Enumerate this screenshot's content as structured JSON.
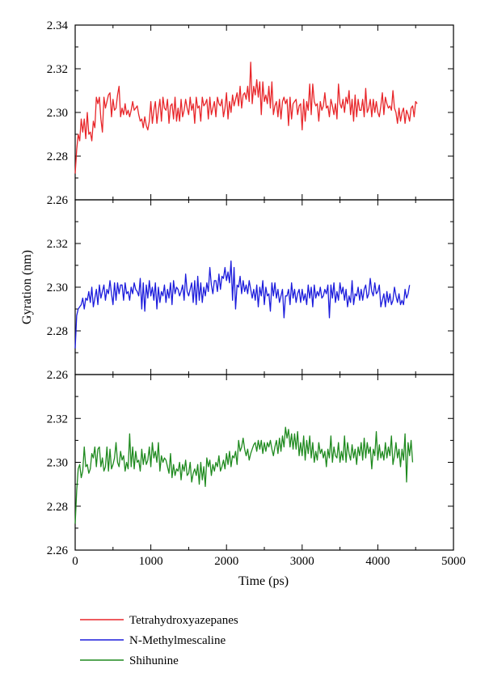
{
  "chart_data": {
    "type": "line",
    "ylabel": "Gyration (nm)",
    "xlabel": "Time (ps)",
    "xlim": [
      0,
      5000
    ],
    "ylim": [
      2.26,
      2.34
    ],
    "xticks": [
      "0",
      "1000",
      "2000",
      "3000",
      "4000",
      "5000"
    ],
    "yticks_top": [
      "2.34",
      "2.32",
      "2.30",
      "2.28",
      "2.26"
    ],
    "yticks_lower": [
      "2.32",
      "2.30",
      "2.28",
      "2.26"
    ],
    "x_step": 20,
    "panels": [
      {
        "name": "Tetrahydroxyazepanes",
        "color": "#e8262a",
        "values": [
          2.272,
          2.283,
          2.29,
          2.287,
          2.297,
          2.291,
          2.297,
          2.288,
          2.3,
          2.29,
          2.291,
          2.287,
          2.296,
          2.293,
          2.307,
          2.304,
          2.307,
          2.297,
          2.291,
          2.307,
          2.302,
          2.305,
          2.308,
          2.309,
          2.298,
          2.306,
          2.301,
          2.302,
          2.308,
          2.312,
          2.298,
          2.302,
          2.299,
          2.304,
          2.299,
          2.301,
          2.298,
          2.301,
          2.305,
          2.301,
          2.302,
          2.303,
          2.299,
          2.296,
          2.297,
          2.293,
          2.298,
          2.294,
          2.292,
          2.296,
          2.305,
          2.295,
          2.301,
          2.305,
          2.295,
          2.301,
          2.306,
          2.296,
          2.307,
          2.302,
          2.301,
          2.306,
          2.295,
          2.303,
          2.304,
          2.297,
          2.307,
          2.296,
          2.302,
          2.296,
          2.306,
          2.298,
          2.301,
          2.306,
          2.302,
          2.299,
          2.307,
          2.301,
          2.304,
          2.295,
          2.307,
          2.302,
          2.303,
          2.296,
          2.307,
          2.303,
          2.304,
          2.306,
          2.297,
          2.307,
          2.299,
          2.302,
          2.305,
          2.298,
          2.307,
          2.304,
          2.303,
          2.306,
          2.298,
          2.302,
          2.309,
          2.297,
          2.305,
          2.3,
          2.308,
          2.303,
          2.306,
          2.309,
          2.303,
          2.312,
          2.302,
          2.308,
          2.309,
          2.306,
          2.312,
          2.305,
          2.323,
          2.304,
          2.312,
          2.308,
          2.315,
          2.307,
          2.314,
          2.299,
          2.314,
          2.305,
          2.308,
          2.304,
          2.312,
          2.302,
          2.314,
          2.299,
          2.303,
          2.305,
          2.298,
          2.306,
          2.297,
          2.305,
          2.307,
          2.304,
          2.306,
          2.294,
          2.307,
          2.297,
          2.304,
          2.305,
          2.306,
          2.299,
          2.303,
          2.304,
          2.292,
          2.306,
          2.296,
          2.305,
          2.301,
          2.313,
          2.299,
          2.313,
          2.305,
          2.303,
          2.304,
          2.296,
          2.305,
          2.301,
          2.303,
          2.309,
          2.302,
          2.303,
          2.298,
          2.306,
          2.303,
          2.299,
          2.304,
          2.297,
          2.313,
          2.304,
          2.302,
          2.306,
          2.3,
          2.307,
          2.304,
          2.31,
          2.299,
          2.306,
          2.296,
          2.308,
          2.298,
          2.306,
          2.301,
          2.301,
          2.306,
          2.298,
          2.311,
          2.3,
          2.302,
          2.306,
          2.298,
          2.306,
          2.3,
          2.305,
          2.3,
          2.298,
          2.303,
          2.309,
          2.299,
          2.307,
          2.304,
          2.302,
          2.303,
          2.301,
          2.31,
          2.302,
          2.3,
          2.295,
          2.302,
          2.296,
          2.3,
          2.302,
          2.295,
          2.301,
          2.299,
          2.296,
          2.302,
          2.303,
          2.298,
          2.305,
          2.304
        ]
      },
      {
        "name": "N-Methylmescaline",
        "color": "#1c1cdc",
        "values": [
          2.272,
          2.287,
          2.29,
          2.291,
          2.292,
          2.295,
          2.29,
          2.295,
          2.294,
          2.298,
          2.293,
          2.3,
          2.291,
          2.295,
          2.299,
          2.292,
          2.301,
          2.295,
          2.298,
          2.301,
          2.294,
          2.299,
          2.297,
          2.303,
          2.297,
          2.292,
          2.302,
          2.294,
          2.302,
          2.297,
          2.301,
          2.301,
          2.294,
          2.302,
          2.297,
          2.298,
          2.294,
          2.3,
          2.297,
          2.302,
          2.299,
          2.298,
          2.296,
          2.304,
          2.29,
          2.302,
          2.289,
          2.301,
          2.295,
          2.303,
          2.296,
          2.3,
          2.294,
          2.302,
          2.29,
          2.3,
          2.293,
          2.298,
          2.296,
          2.301,
          2.293,
          2.299,
          2.295,
          2.302,
          2.292,
          2.303,
          2.297,
          2.3,
          2.299,
          2.296,
          2.298,
          2.301,
          2.294,
          2.306,
          2.298,
          2.296,
          2.299,
          2.302,
          2.293,
          2.303,
          2.292,
          2.305,
          2.294,
          2.302,
          2.293,
          2.3,
          2.296,
          2.302,
          2.298,
          2.309,
          2.301,
          2.297,
          2.303,
          2.303,
          2.298,
          2.306,
          2.299,
          2.305,
          2.304,
          2.309,
          2.303,
          2.307,
          2.302,
          2.312,
          2.294,
          2.309,
          2.29,
          2.301,
          2.3,
          2.305,
          2.297,
          2.303,
          2.298,
          2.301,
          2.297,
          2.303,
          2.299,
          2.295,
          2.299,
          2.294,
          2.301,
          2.291,
          2.3,
          2.296,
          2.303,
          2.292,
          2.3,
          2.296,
          2.297,
          2.289,
          2.302,
          2.296,
          2.302,
          2.295,
          2.299,
          2.293,
          2.296,
          2.299,
          2.286,
          2.296,
          2.296,
          2.299,
          2.292,
          2.302,
          2.295,
          2.299,
          2.293,
          2.297,
          2.299,
          2.293,
          2.299,
          2.294,
          2.297,
          2.292,
          2.301,
          2.295,
          2.3,
          2.291,
          2.301,
          2.295,
          2.298,
          2.296,
          2.3,
          2.295,
          2.296,
          2.299,
          2.297,
          2.301,
          2.286,
          2.301,
          2.295,
          2.302,
          2.293,
          2.298,
          2.294,
          2.302,
          2.297,
          2.3,
          2.294,
          2.299,
          2.291,
          2.296,
          2.293,
          2.303,
          2.292,
          2.297,
          2.296,
          2.3,
          2.294,
          2.299,
          2.294,
          2.299,
          2.301,
          2.295,
          2.297,
          2.304,
          2.298,
          2.296,
          2.302,
          2.297,
          2.298,
          2.301,
          2.291,
          2.294,
          2.297,
          2.291,
          2.298,
          2.293,
          2.297,
          2.292,
          2.294,
          2.3,
          2.296,
          2.293,
          2.297,
          2.292,
          2.294,
          2.292,
          2.299,
          2.295,
          2.297,
          2.301
        ]
      },
      {
        "name": "Shihunine",
        "color": "#1f8a1f",
        "values": [
          2.272,
          2.287,
          2.297,
          2.299,
          2.293,
          2.296,
          2.307,
          2.298,
          2.299,
          2.295,
          2.297,
          2.304,
          2.302,
          2.307,
          2.298,
          2.306,
          2.307,
          2.298,
          2.302,
          2.296,
          2.298,
          2.307,
          2.296,
          2.306,
          2.297,
          2.299,
          2.302,
          2.309,
          2.3,
          2.298,
          2.305,
          2.301,
          2.303,
          2.296,
          2.3,
          2.297,
          2.313,
          2.298,
          2.307,
          2.297,
          2.305,
          2.3,
          2.301,
          2.296,
          2.306,
          2.299,
          2.304,
          2.299,
          2.301,
          2.307,
          2.298,
          2.309,
          2.302,
          2.305,
          2.3,
          2.309,
          2.296,
          2.303,
          2.3,
          2.302,
          2.301,
          2.298,
          2.295,
          2.304,
          2.293,
          2.299,
          2.294,
          2.297,
          2.296,
          2.3,
          2.292,
          2.299,
          2.296,
          2.301,
          2.294,
          2.295,
          2.3,
          2.291,
          2.295,
          2.297,
          2.294,
          2.299,
          2.29,
          2.3,
          2.292,
          2.298,
          2.289,
          2.302,
          2.298,
          2.301,
          2.294,
          2.299,
          2.296,
          2.3,
          2.298,
          2.303,
          2.296,
          2.298,
          2.301,
          2.297,
          2.304,
          2.299,
          2.305,
          2.298,
          2.303,
          2.302,
          2.305,
          2.299,
          2.31,
          2.305,
          2.307,
          2.311,
          2.306,
          2.303,
          2.306,
          2.301,
          2.304,
          2.306,
          2.308,
          2.309,
          2.305,
          2.31,
          2.306,
          2.31,
          2.304,
          2.309,
          2.305,
          2.309,
          2.307,
          2.31,
          2.306,
          2.303,
          2.307,
          2.31,
          2.304,
          2.311,
          2.305,
          2.312,
          2.307,
          2.316,
          2.311,
          2.315,
          2.307,
          2.313,
          2.306,
          2.313,
          2.306,
          2.314,
          2.303,
          2.309,
          2.303,
          2.312,
          2.301,
          2.31,
          2.304,
          2.312,
          2.302,
          2.309,
          2.3,
          2.305,
          2.301,
          2.309,
          2.304,
          2.306,
          2.302,
          2.305,
          2.298,
          2.306,
          2.302,
          2.312,
          2.3,
          2.307,
          2.303,
          2.302,
          2.309,
          2.3,
          2.305,
          2.301,
          2.312,
          2.3,
          2.309,
          2.304,
          2.301,
          2.308,
          2.302,
          2.306,
          2.299,
          2.307,
          2.303,
          2.309,
          2.301,
          2.311,
          2.302,
          2.309,
          2.304,
          2.307,
          2.297,
          2.306,
          2.303,
          2.314,
          2.301,
          2.308,
          2.302,
          2.305,
          2.301,
          2.309,
          2.302,
          2.307,
          2.303,
          2.312,
          2.299,
          2.303,
          2.309,
          2.302,
          2.306,
          2.298,
          2.306,
          2.301,
          2.313,
          2.291,
          2.309,
          2.303,
          2.31,
          2.3
        ]
      }
    ],
    "legend": {
      "placement": "bottom-left",
      "entries": [
        {
          "label": "Tetrahydroxyazepanes",
          "color": "#e8262a"
        },
        {
          "label": "N-Methylmescaline",
          "color": "#1c1cdc"
        },
        {
          "label": "Shihunine",
          "color": "#1f8a1f"
        }
      ]
    }
  }
}
